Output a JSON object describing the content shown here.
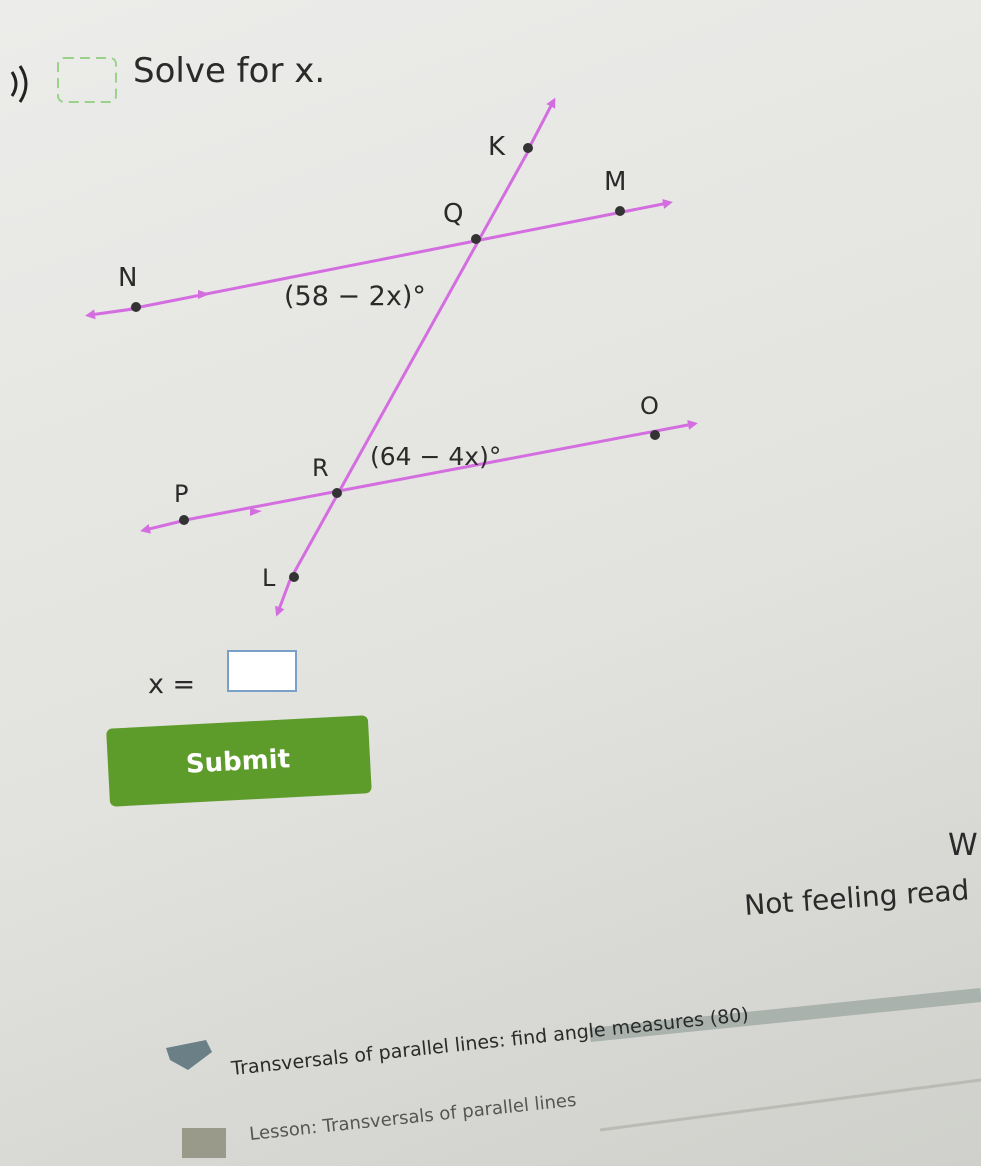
{
  "question": {
    "prompt": "Solve for x.",
    "diagram": {
      "points": [
        "K",
        "M",
        "Q",
        "N",
        "R",
        "O",
        "P",
        "L"
      ],
      "angles": [
        "(58 − 2x)°",
        "(64 − 4x)°"
      ]
    },
    "answer_label": "x =",
    "submit": "Submit"
  },
  "side": {
    "heading": "W",
    "not_ready": "Not feeling read"
  },
  "footer": {
    "skill": "Transversals of parallel lines: find angle measures (80)",
    "lesson": "Lesson: Transversals of parallel lines"
  }
}
